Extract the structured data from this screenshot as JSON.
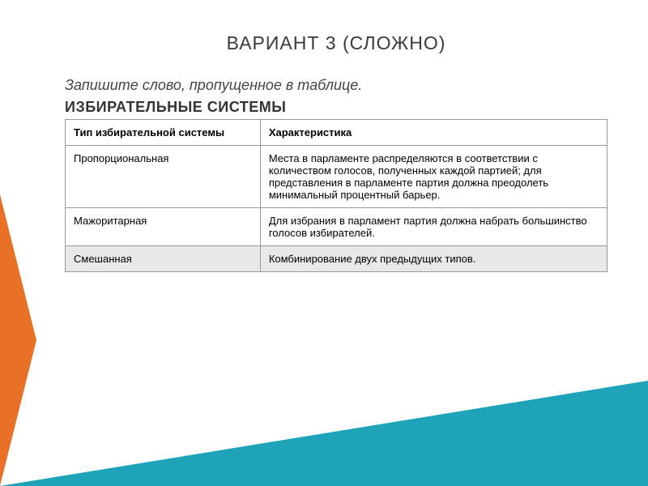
{
  "title": "ВАРИАНТ 3 (СЛОЖНО)",
  "instruction": "Запишите слово, пропущенное в таблице.",
  "subtitle": "ИЗБИРАТЕЛЬНЫЕ СИСТЕМЫ",
  "table": {
    "columns": [
      "Тип избирательной системы",
      "Характеристика"
    ],
    "rows": [
      {
        "type": "Пропорциональная",
        "desc": "Места в парламенте распределяются в соответствии с количеством голосов, полученных каждой партией; для представления в парламенте партия должна преодолеть минимальный процентный барьер."
      },
      {
        "type": "Мажоритарная",
        "desc": "Для избрания в парламент партия должна набрать большинство голосов избирателей."
      },
      {
        "type": "Смешанная",
        "desc": "Комбинирование двух предыдущих типов."
      }
    ]
  },
  "colors": {
    "orange": "#e97127",
    "teal": "#1ea3b8",
    "text": "#3a3a3a",
    "border": "#999999",
    "highlight_bg": "#e8e8e8"
  }
}
